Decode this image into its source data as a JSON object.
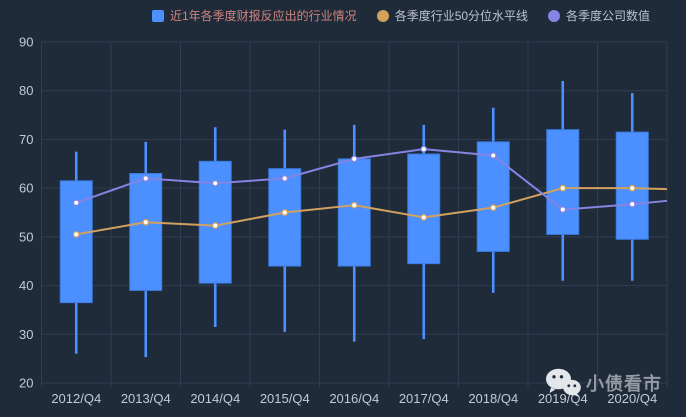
{
  "colors": {
    "background": "#202b3a",
    "grid_line": "#2f3c51",
    "candle_fill": "#4c8fff",
    "candle_border": "#3a7be0",
    "median_line": "#d2a15e",
    "company_line": "#8584e1",
    "point_fill": "#ffffff",
    "axis_label": "#c3c9d5",
    "legend_text": "#bcc2cf",
    "legend_text_first": "#d0837e",
    "watermark_text": "#959ba5",
    "watermark_icon": "#e3e6ea"
  },
  "legend": [
    {
      "label": "近1年各季度财报反应出的行业情况",
      "marker": "square",
      "color": "#4c8fff",
      "text_color": "#d0837e"
    },
    {
      "label": "各季度行业50分位水平线",
      "marker": "circle",
      "color": "#d2a15e",
      "text_color": "#bcc2cf"
    },
    {
      "label": "各季度公司数值",
      "marker": "circle",
      "color": "#8584e1",
      "text_color": "#bcc2cf"
    }
  ],
  "watermark": {
    "text": "小债看市",
    "icon": "wechat-icon"
  },
  "chart_data": {
    "type": "candlestick+line",
    "categories": [
      "2012/Q4",
      "2013/Q4",
      "2014/Q4",
      "2015/Q4",
      "2016/Q4",
      "2017/Q4",
      "2018/Q4",
      "2019/Q4",
      "2020/Q4"
    ],
    "y_ticks": [
      20,
      30,
      40,
      50,
      60,
      70,
      80,
      90
    ],
    "ylim": [
      20,
      90
    ],
    "grid": {
      "horizontal": true,
      "vertical": true
    },
    "legend_position": "top",
    "series": [
      {
        "name": "近1年各季度财报反应出的行业情况",
        "type": "candlestick",
        "value_format": [
          "body_bottom",
          "body_top",
          "whisker_low",
          "whisker_high"
        ],
        "values": [
          [
            36.5,
            61.5,
            26,
            67.5
          ],
          [
            39,
            63,
            25.3,
            69.5
          ],
          [
            40.5,
            65.5,
            31.5,
            72.5
          ],
          [
            44,
            64,
            30.5,
            72
          ],
          [
            44,
            66,
            28.5,
            73
          ],
          [
            44.5,
            67,
            29,
            73
          ],
          [
            47,
            69.5,
            38.5,
            76.5
          ],
          [
            50.5,
            72,
            41,
            82
          ],
          [
            49.5,
            71.5,
            41,
            79.5
          ]
        ]
      },
      {
        "name": "各季度行业50分位水平线",
        "type": "line",
        "values": [
          50.5,
          53,
          52.3,
          55,
          56.5,
          54,
          56,
          60,
          60
        ],
        "value_at_chart_right_edge": 59.8
      },
      {
        "name": "各季度公司数值",
        "type": "line",
        "values": [
          57,
          62,
          61,
          62,
          66,
          68,
          66.7,
          55.6,
          56.7
        ],
        "value_at_chart_right_edge": 57.4
      }
    ]
  }
}
